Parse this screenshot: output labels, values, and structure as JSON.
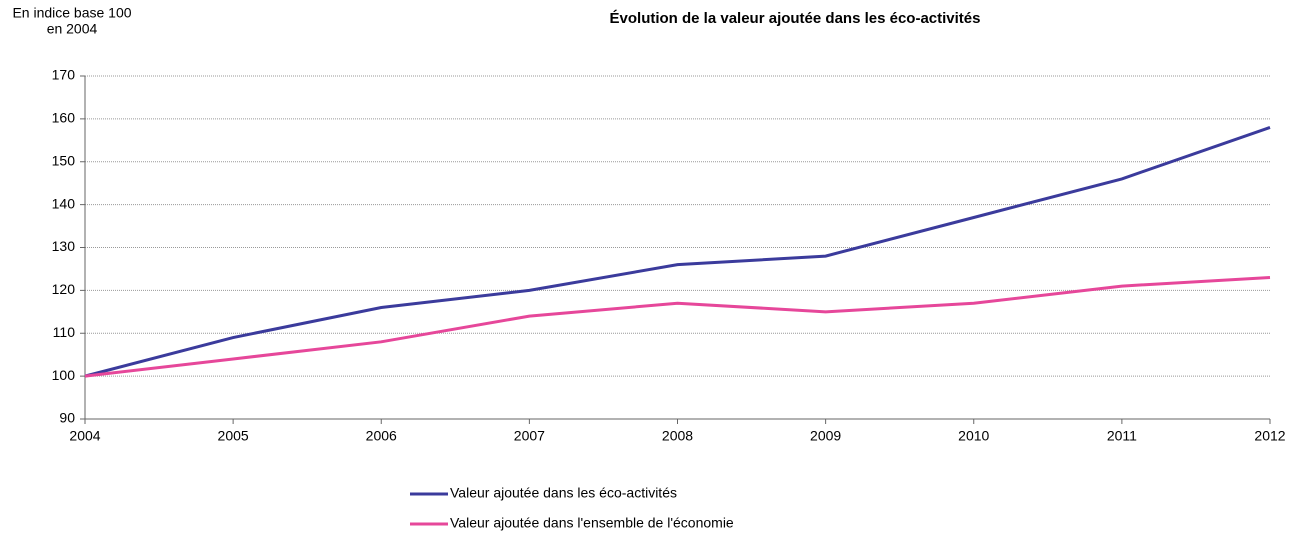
{
  "chart_data": {
    "type": "line",
    "title": "Évolution de la valeur ajoutée dans les éco-activités",
    "ylabel": [
      "En indice base 100",
      "en 2004"
    ],
    "x": [
      2004,
      2005,
      2006,
      2007,
      2008,
      2009,
      2010,
      2011,
      2012
    ],
    "series": [
      {
        "name": "Valeur ajoutée dans les éco-activités",
        "color": "#3b3b9c",
        "values": [
          100,
          109,
          116,
          120,
          126,
          128,
          137,
          146,
          158
        ]
      },
      {
        "name": "Valeur ajoutée dans l'ensemble de l'économie",
        "color": "#e6479a",
        "values": [
          100,
          104,
          108,
          114,
          117,
          115,
          117,
          121,
          123
        ]
      }
    ],
    "xlim": [
      2004,
      2012
    ],
    "xticks": [
      2004,
      2005,
      2006,
      2007,
      2008,
      2009,
      2010,
      2011,
      2012
    ],
    "ylim": [
      90,
      170
    ],
    "yticks": [
      90,
      100,
      110,
      120,
      130,
      140,
      150,
      160,
      170
    ],
    "grid": true,
    "legend": "bottom"
  }
}
